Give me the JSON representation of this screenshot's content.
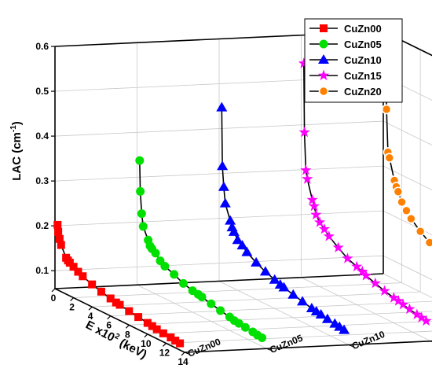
{
  "chart_data": {
    "type": "line",
    "x_label_parts": {
      "base": "E x10",
      "exponent": "2",
      "unit": " (keV)"
    },
    "y_label_parts": {
      "base": "LAC (cm",
      "exponent": "-1",
      "unit": ")"
    },
    "x_ticks": [
      0,
      2,
      4,
      6,
      8,
      10,
      12,
      14
    ],
    "y_ticks": [
      0.1,
      0.2,
      0.3,
      0.4,
      0.5,
      0.6
    ],
    "z_ticks": [
      "CuZn00",
      "CuZn05",
      "CuZn10",
      "CuZn15",
      "CuZn20"
    ],
    "xlim": [
      0,
      14
    ],
    "ylim": [
      0.06,
      0.6
    ],
    "grid": true,
    "legend_position": "top-right",
    "series": [
      {
        "name": "CuZn00",
        "color": "#ff0000",
        "marker": "square",
        "points": [
          [
            0.28,
            0.205
          ],
          [
            0.35,
            0.19
          ],
          [
            0.5,
            0.176
          ],
          [
            0.66,
            0.164
          ],
          [
            1.2,
            0.141
          ],
          [
            1.4,
            0.137
          ],
          [
            1.6,
            0.134
          ],
          [
            2.0,
            0.129
          ],
          [
            2.5,
            0.123
          ],
          [
            3.0,
            0.118
          ],
          [
            4.0,
            0.11
          ],
          [
            5.0,
            0.104
          ],
          [
            6.0,
            0.099
          ],
          [
            6.6,
            0.096
          ],
          [
            7.0,
            0.095
          ],
          [
            8.0,
            0.091
          ],
          [
            9.0,
            0.088
          ],
          [
            10.0,
            0.085
          ],
          [
            10.5,
            0.083
          ],
          [
            11.0,
            0.081
          ],
          [
            11.7,
            0.079
          ],
          [
            12.5,
            0.078
          ],
          [
            13.0,
            0.076
          ],
          [
            13.5,
            0.075
          ]
        ]
      },
      {
        "name": "CuZn05",
        "color": "#00e000",
        "marker": "circle",
        "points": [
          [
            0.28,
            0.34
          ],
          [
            0.35,
            0.272
          ],
          [
            0.5,
            0.224
          ],
          [
            0.66,
            0.197
          ],
          [
            1.2,
            0.172
          ],
          [
            1.4,
            0.161
          ],
          [
            1.6,
            0.157
          ],
          [
            2.0,
            0.151
          ],
          [
            2.5,
            0.139
          ],
          [
            3.0,
            0.132
          ],
          [
            4.0,
            0.124
          ],
          [
            5.0,
            0.114
          ],
          [
            6.0,
            0.108
          ],
          [
            6.6,
            0.106
          ],
          [
            7.0,
            0.104
          ],
          [
            8.0,
            0.099
          ],
          [
            9.0,
            0.094
          ],
          [
            10.0,
            0.09
          ],
          [
            10.5,
            0.087
          ],
          [
            11.0,
            0.086
          ],
          [
            11.7,
            0.084
          ],
          [
            12.5,
            0.082
          ],
          [
            13.0,
            0.08
          ],
          [
            13.5,
            0.079
          ]
        ]
      },
      {
        "name": "CuZn10",
        "color": "#0000ff",
        "marker": "triangle",
        "points": [
          [
            0.28,
            0.45
          ],
          [
            0.35,
            0.32
          ],
          [
            0.5,
            0.275
          ],
          [
            0.66,
            0.24
          ],
          [
            1.2,
            0.207
          ],
          [
            1.4,
            0.194
          ],
          [
            1.6,
            0.186
          ],
          [
            2.0,
            0.172
          ],
          [
            2.5,
            0.165
          ],
          [
            3.0,
            0.155
          ],
          [
            4.0,
            0.142
          ],
          [
            5.0,
            0.132
          ],
          [
            6.0,
            0.124
          ],
          [
            6.6,
            0.119
          ],
          [
            7.0,
            0.117
          ],
          [
            8.0,
            0.111
          ],
          [
            9.0,
            0.106
          ],
          [
            10.0,
            0.101
          ],
          [
            10.5,
            0.099
          ],
          [
            11.0,
            0.097
          ],
          [
            11.7,
            0.094
          ],
          [
            12.5,
            0.092
          ],
          [
            13.0,
            0.09
          ],
          [
            13.5,
            0.088
          ]
        ]
      },
      {
        "name": "CuZn15",
        "color": "#ff00ff",
        "marker": "star",
        "points": [
          [
            0.28,
            0.54
          ],
          [
            0.35,
            0.387
          ],
          [
            0.5,
            0.304
          ],
          [
            0.66,
            0.286
          ],
          [
            1.2,
            0.245
          ],
          [
            1.4,
            0.233
          ],
          [
            1.6,
            0.216
          ],
          [
            2.0,
            0.203
          ],
          [
            2.5,
            0.193
          ],
          [
            3.0,
            0.182
          ],
          [
            4.0,
            0.167
          ],
          [
            5.0,
            0.153
          ],
          [
            6.0,
            0.145
          ],
          [
            6.6,
            0.14
          ],
          [
            7.0,
            0.135
          ],
          [
            8.0,
            0.128
          ],
          [
            9.0,
            0.121
          ],
          [
            10.0,
            0.116
          ],
          [
            10.5,
            0.114
          ],
          [
            11.0,
            0.111
          ],
          [
            11.7,
            0.108
          ],
          [
            12.5,
            0.104
          ],
          [
            13.0,
            0.102
          ],
          [
            13.5,
            0.1
          ]
        ]
      },
      {
        "name": "CuZn20",
        "color": "#ff8000",
        "marker": "circle-half",
        "points": [
          [
            0.28,
            0.61
          ],
          [
            0.35,
            0.43
          ],
          [
            0.5,
            0.336
          ],
          [
            0.66,
            0.325
          ],
          [
            1.2,
            0.28
          ],
          [
            1.4,
            0.268
          ],
          [
            1.6,
            0.259
          ],
          [
            2.0,
            0.24
          ],
          [
            2.5,
            0.226
          ],
          [
            3.0,
            0.213
          ],
          [
            4.0,
            0.195
          ],
          [
            5.0,
            0.18
          ],
          [
            6.0,
            0.168
          ],
          [
            6.6,
            0.162
          ],
          [
            7.0,
            0.157
          ],
          [
            8.0,
            0.149
          ],
          [
            9.0,
            0.141
          ],
          [
            10.0,
            0.134
          ],
          [
            10.5,
            0.131
          ],
          [
            11.0,
            0.128
          ],
          [
            11.7,
            0.125
          ],
          [
            12.5,
            0.121
          ],
          [
            13.0,
            0.118
          ],
          [
            13.5,
            0.116
          ]
        ]
      }
    ]
  }
}
